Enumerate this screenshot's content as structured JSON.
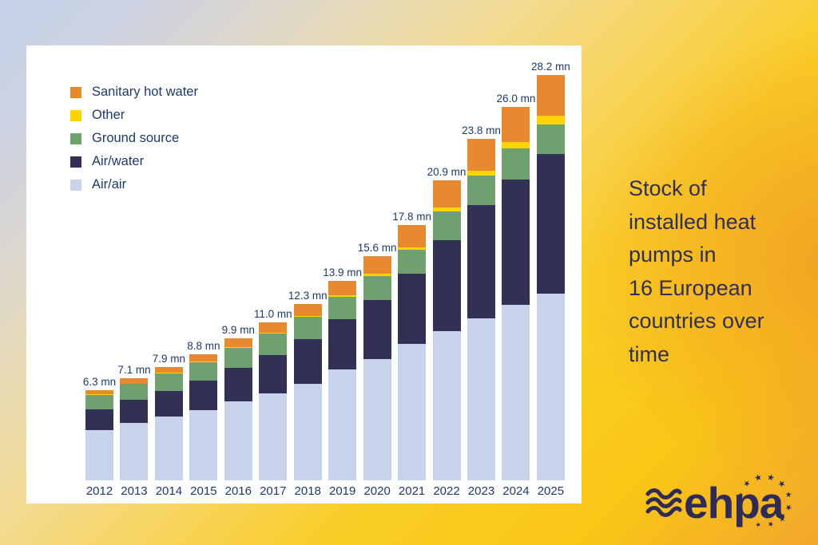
{
  "side_caption": {
    "lines": [
      "Stock of",
      "installed heat",
      "pumps in",
      "16 European",
      "countries over",
      "time"
    ]
  },
  "logo": {
    "text": "ehpa",
    "waves_icon": "three-wave-lines-icon",
    "stars_icon": "eu-stars-arc-icon"
  },
  "colors": {
    "sanitary_hot_water": "#e8892f",
    "other": "#fcd303",
    "ground_source": "#6fa06f",
    "air_water": "#333056",
    "air_air": "#c7d3eb",
    "chart_text": "#1f3a66",
    "caption_text": "#322e56",
    "panel_background": "#ffffff"
  },
  "chart_data": {
    "type": "bar",
    "stacked": true,
    "title": "Stock of installed heat pumps in 16 European countries over time",
    "unit": "mn",
    "grid": false,
    "axes_visible": false,
    "legend_position": "top-left",
    "legend": [
      "Sanitary hot water",
      "Other",
      "Ground source",
      "Air/water",
      "Air/air"
    ],
    "categories": [
      "2012",
      "2013",
      "2014",
      "2015",
      "2016",
      "2017",
      "2018",
      "2019",
      "2020",
      "2021",
      "2022",
      "2023",
      "2024",
      "2025"
    ],
    "totals": [
      6.3,
      7.1,
      7.9,
      8.8,
      9.9,
      11.0,
      12.3,
      13.9,
      15.6,
      17.8,
      20.9,
      23.8,
      26.0,
      28.2
    ],
    "total_labels": [
      "6.3 mn",
      "7.1 mn",
      "7.9 mn",
      "8.8 mn",
      "9.9 mn",
      "11.0 mn",
      "12.3 mn",
      "13.9 mn",
      "15.6 mn",
      "17.8 mn",
      "20.9 mn",
      "23.8 mn",
      "26.0 mn",
      "28.2 mn"
    ],
    "series": [
      {
        "name": "Air/air",
        "color": "#c7d3eb",
        "values": [
          3.5,
          4.0,
          4.44,
          4.9,
          5.5,
          6.05,
          6.72,
          7.7,
          8.45,
          9.5,
          10.4,
          11.3,
          12.25,
          13.0
        ]
      },
      {
        "name": "Air/water",
        "color": "#333056",
        "values": [
          1.45,
          1.6,
          1.8,
          2.05,
          2.35,
          2.7,
          3.1,
          3.5,
          4.1,
          4.9,
          6.35,
          7.85,
          8.7,
          9.7
        ]
      },
      {
        "name": "Ground source",
        "color": "#6fa06f",
        "values": [
          1.0,
          1.1,
          1.2,
          1.3,
          1.4,
          1.5,
          1.55,
          1.6,
          1.7,
          1.65,
          1.95,
          2.05,
          2.15,
          2.1
        ]
      },
      {
        "name": "Other",
        "color": "#fcd303",
        "values": [
          0.03,
          0.03,
          0.04,
          0.05,
          0.05,
          0.05,
          0.08,
          0.1,
          0.15,
          0.2,
          0.3,
          0.35,
          0.45,
          0.6
        ]
      },
      {
        "name": "Sanitary hot water",
        "color": "#e8892f",
        "values": [
          0.32,
          0.37,
          0.42,
          0.5,
          0.6,
          0.7,
          0.85,
          1.0,
          1.2,
          1.55,
          1.9,
          2.25,
          2.45,
          2.8
        ]
      }
    ]
  }
}
